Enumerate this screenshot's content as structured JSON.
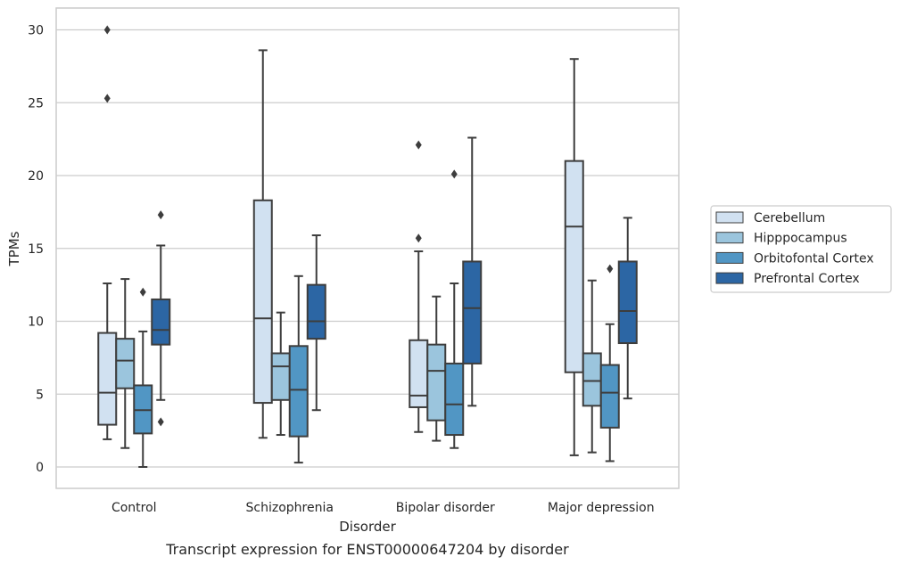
{
  "caption": "Transcript expression for ENST00000647204 by disorder",
  "chart_data": {
    "type": "box",
    "title": "",
    "xlabel": "Disorder",
    "ylabel": "TPMs",
    "ylim": [
      -1.4,
      31.5
    ],
    "yticks": [
      0,
      5,
      10,
      15,
      20,
      25,
      30
    ],
    "grid": "horizontal",
    "legend_position": "right",
    "categories": [
      "Control",
      "Schizophrenia",
      "Bipolar disorder",
      "Major depression"
    ],
    "series": [
      {
        "name": "Cerebellum",
        "color": "#d1e1f1",
        "boxes": [
          {
            "whisker_low": 1.9,
            "q1": 2.9,
            "median": 5.1,
            "q3": 9.2,
            "whisker_high": 12.6,
            "outliers": [
              25.3,
              30.0
            ]
          },
          {
            "whisker_low": 2.0,
            "q1": 4.4,
            "median": 10.2,
            "q3": 18.3,
            "whisker_high": 28.6,
            "outliers": []
          },
          {
            "whisker_low": 2.4,
            "q1": 4.1,
            "median": 4.9,
            "q3": 8.7,
            "whisker_high": 14.8,
            "outliers": [
              15.7,
              22.1
            ]
          },
          {
            "whisker_low": 0.8,
            "q1": 6.5,
            "median": 16.5,
            "q3": 21.0,
            "whisker_high": 28.0,
            "outliers": []
          }
        ]
      },
      {
        "name": "Hipppocampus",
        "color": "#9bc5dd",
        "boxes": [
          {
            "whisker_low": 1.3,
            "q1": 5.4,
            "median": 7.3,
            "q3": 8.8,
            "whisker_high": 12.9,
            "outliers": []
          },
          {
            "whisker_low": 2.2,
            "q1": 4.6,
            "median": 6.9,
            "q3": 7.8,
            "whisker_high": 10.6,
            "outliers": []
          },
          {
            "whisker_low": 1.8,
            "q1": 3.2,
            "median": 6.6,
            "q3": 8.4,
            "whisker_high": 11.7,
            "outliers": []
          },
          {
            "whisker_low": 1.0,
            "q1": 4.2,
            "median": 5.9,
            "q3": 7.8,
            "whisker_high": 12.8,
            "outliers": []
          }
        ]
      },
      {
        "name": "Orbitofontal Cortex",
        "color": "#5196c4",
        "boxes": [
          {
            "whisker_low": 0.0,
            "q1": 2.3,
            "median": 3.9,
            "q3": 5.6,
            "whisker_high": 9.3,
            "outliers": [
              12.0
            ]
          },
          {
            "whisker_low": 0.3,
            "q1": 2.1,
            "median": 5.3,
            "q3": 8.3,
            "whisker_high": 13.1,
            "outliers": []
          },
          {
            "whisker_low": 1.3,
            "q1": 2.2,
            "median": 4.3,
            "q3": 7.1,
            "whisker_high": 12.6,
            "outliers": [
              20.1
            ]
          },
          {
            "whisker_low": 0.4,
            "q1": 2.7,
            "median": 5.1,
            "q3": 7.0,
            "whisker_high": 9.8,
            "outliers": [
              13.6
            ]
          }
        ]
      },
      {
        "name": "Prefrontal Cortex",
        "color": "#2c66a4",
        "boxes": [
          {
            "whisker_low": 4.6,
            "q1": 8.4,
            "median": 9.4,
            "q3": 11.5,
            "whisker_high": 15.2,
            "outliers": [
              3.1,
              17.3
            ]
          },
          {
            "whisker_low": 3.9,
            "q1": 8.8,
            "median": 10.0,
            "q3": 12.5,
            "whisker_high": 15.9,
            "outliers": []
          },
          {
            "whisker_low": 4.2,
            "q1": 7.1,
            "median": 10.9,
            "q3": 14.1,
            "whisker_high": 22.6,
            "outliers": []
          },
          {
            "whisker_low": 4.7,
            "q1": 8.5,
            "median": 10.7,
            "q3": 14.1,
            "whisker_high": 17.1,
            "outliers": []
          }
        ]
      }
    ]
  }
}
